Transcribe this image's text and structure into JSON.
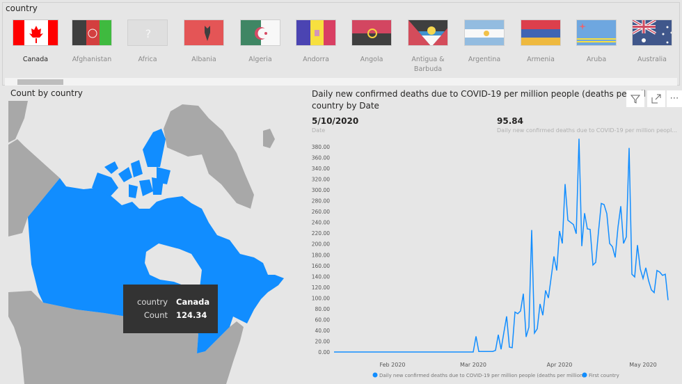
{
  "slicer": {
    "title": "country",
    "items": [
      {
        "label": "Canada",
        "selected": true,
        "icon": "flag-canada"
      },
      {
        "label": "Afghanistan",
        "icon": "flag-afghanistan"
      },
      {
        "label": "Africa",
        "icon": "flag-unknown",
        "glyph": "?"
      },
      {
        "label": "Albania",
        "icon": "flag-albania"
      },
      {
        "label": "Algeria",
        "icon": "flag-algeria"
      },
      {
        "label": "Andorra",
        "icon": "flag-andorra"
      },
      {
        "label": "Angola",
        "icon": "flag-angola"
      },
      {
        "label": "Antigua & Barbuda",
        "icon": "flag-antigua-barbuda"
      },
      {
        "label": "Argentina",
        "icon": "flag-argentina"
      },
      {
        "label": "Armenia",
        "icon": "flag-armenia"
      },
      {
        "label": "Aruba",
        "icon": "flag-aruba"
      },
      {
        "label": "Australia",
        "icon": "flag-australia"
      }
    ]
  },
  "map": {
    "title": "Count by country",
    "highlight_color": "#118DFF",
    "tooltip": {
      "k1": "country",
      "v1": "Canada",
      "k2": "Count",
      "v2": "124.34"
    }
  },
  "chart": {
    "title": "Daily new confirmed deaths due to COVID-19 per million people (deaths per million) - First country by Date",
    "title_visible": "Daily new confirmed deaths due to COVID-19 per million people (deaths per mil",
    "title_line2": "country by Date",
    "kpi_date": "5/10/2020",
    "kpi_date_label": "Date",
    "kpi_value": "95.84",
    "kpi_value_label": "Daily new confirmed deaths due to COVID-19 per million peopl...",
    "buttons": {
      "filter": "filter-icon",
      "focus": "focus-mode-icon",
      "more": "⋯"
    }
  },
  "chart_data": {
    "type": "line",
    "color": "#118DFF",
    "ylim": [
      0,
      380
    ],
    "y_ticks": [
      "0.00",
      "20.00",
      "40.00",
      "60.00",
      "80.00",
      "100.00",
      "120.00",
      "140.00",
      "160.00",
      "180.00",
      "200.00",
      "220.00",
      "240.00",
      "260.00",
      "280.00",
      "300.00",
      "320.00",
      "340.00",
      "360.00",
      "380.00"
    ],
    "xlim": [
      "2020-01-11",
      "2020-05-10"
    ],
    "x_ticks": [
      {
        "date": "2020-02-01",
        "label": "Feb 2020"
      },
      {
        "date": "2020-03-01",
        "label": "Mar 2020"
      },
      {
        "date": "2020-04-01",
        "label": "Apr 2020"
      },
      {
        "date": "2020-05-01",
        "label": "May 2020"
      }
    ],
    "legend": [
      {
        "label": "Daily new confirmed deaths due to COVID-19 per million people (deaths per million)"
      },
      {
        "label": "First country"
      }
    ],
    "legend_position": "bottom",
    "grid": false,
    "points": [
      [
        "2020-01-11",
        0
      ],
      [
        "2020-02-29",
        0
      ],
      [
        "2020-03-01",
        0
      ],
      [
        "2020-03-02",
        29
      ],
      [
        "2020-03-03",
        1
      ],
      [
        "2020-03-04",
        1
      ],
      [
        "2020-03-05",
        1
      ],
      [
        "2020-03-06",
        1
      ],
      [
        "2020-03-07",
        1
      ],
      [
        "2020-03-08",
        1
      ],
      [
        "2020-03-09",
        3
      ],
      [
        "2020-03-10",
        32
      ],
      [
        "2020-03-11",
        5
      ],
      [
        "2020-03-12",
        36
      ],
      [
        "2020-03-13",
        66
      ],
      [
        "2020-03-14",
        9
      ],
      [
        "2020-03-15",
        8
      ],
      [
        "2020-03-16",
        74
      ],
      [
        "2020-03-17",
        71
      ],
      [
        "2020-03-18",
        76
      ],
      [
        "2020-03-19",
        108
      ],
      [
        "2020-03-20",
        28
      ],
      [
        "2020-03-21",
        46
      ],
      [
        "2020-03-22",
        226
      ],
      [
        "2020-03-23",
        35
      ],
      [
        "2020-03-24",
        43
      ],
      [
        "2020-03-25",
        89
      ],
      [
        "2020-03-26",
        68
      ],
      [
        "2020-03-27",
        114
      ],
      [
        "2020-03-28",
        100
      ],
      [
        "2020-03-29",
        138
      ],
      [
        "2020-03-30",
        177
      ],
      [
        "2020-03-31",
        151
      ],
      [
        "2020-04-01",
        224
      ],
      [
        "2020-04-02",
        201
      ],
      [
        "2020-04-03",
        311
      ],
      [
        "2020-04-04",
        244
      ],
      [
        "2020-04-05",
        240
      ],
      [
        "2020-04-06",
        236
      ],
      [
        "2020-04-07",
        219
      ],
      [
        "2020-04-08",
        395
      ],
      [
        "2020-04-09",
        196
      ],
      [
        "2020-04-10",
        257
      ],
      [
        "2020-04-11",
        228
      ],
      [
        "2020-04-12",
        227
      ],
      [
        "2020-04-13",
        161
      ],
      [
        "2020-04-14",
        166
      ],
      [
        "2020-04-15",
        223
      ],
      [
        "2020-04-16",
        275
      ],
      [
        "2020-04-17",
        273
      ],
      [
        "2020-04-18",
        256
      ],
      [
        "2020-04-19",
        201
      ],
      [
        "2020-04-20",
        195
      ],
      [
        "2020-04-21",
        175
      ],
      [
        "2020-04-22",
        231
      ],
      [
        "2020-04-23",
        270
      ],
      [
        "2020-04-24",
        201
      ],
      [
        "2020-04-25",
        213
      ],
      [
        "2020-04-26",
        378
      ],
      [
        "2020-04-27",
        144
      ],
      [
        "2020-04-28",
        139
      ],
      [
        "2020-04-29",
        198
      ],
      [
        "2020-04-30",
        154
      ],
      [
        "2020-05-01",
        136
      ],
      [
        "2020-05-02",
        156
      ],
      [
        "2020-05-03",
        132
      ],
      [
        "2020-05-04",
        115
      ],
      [
        "2020-05-05",
        110
      ],
      [
        "2020-05-06",
        151
      ],
      [
        "2020-05-07",
        148
      ],
      [
        "2020-05-08",
        142
      ],
      [
        "2020-05-09",
        144
      ],
      [
        "2020-05-10",
        95.84
      ]
    ]
  }
}
